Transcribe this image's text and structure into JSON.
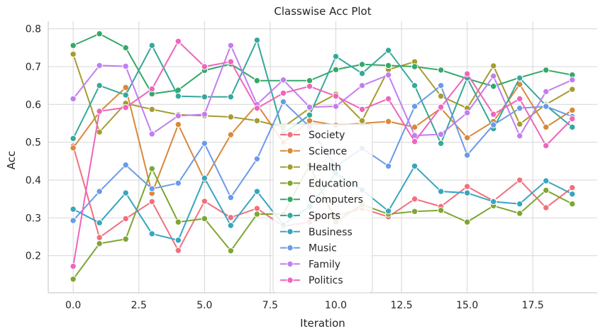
{
  "chart_data": {
    "type": "line",
    "title": "Classwise Acc Plot",
    "xlabel": "Iteration",
    "ylabel": "Acc",
    "xlim": [
      -0.95,
      19.95
    ],
    "ylim": [
      0.102,
      0.82
    ],
    "xticks": [
      0.0,
      2.5,
      5.0,
      7.5,
      10.0,
      12.5,
      15.0,
      17.5
    ],
    "xtick_labels": [
      "0.0",
      "2.5",
      "5.0",
      "7.5",
      "10.0",
      "12.5",
      "15.0",
      "17.5"
    ],
    "yticks": [
      0.2,
      0.3,
      0.4,
      0.5,
      0.6,
      0.7,
      0.8
    ],
    "ytick_labels": [
      "0.2",
      "0.3",
      "0.4",
      "0.5",
      "0.6",
      "0.7",
      "0.8"
    ],
    "grid": true,
    "legend_position": "lower-center",
    "x": [
      0,
      1,
      2,
      3,
      4,
      5,
      6,
      7,
      8,
      9,
      10,
      11,
      12,
      13,
      14,
      15,
      16,
      17,
      18,
      19
    ],
    "series": [
      {
        "name": "Society",
        "color": "#f0707e",
        "values": [
          0.49,
          0.248,
          0.298,
          0.343,
          0.214,
          0.344,
          0.301,
          0.325,
          0.278,
          0.289,
          0.305,
          0.325,
          0.303,
          0.35,
          0.33,
          0.383,
          0.345,
          0.4,
          0.327,
          0.38
        ]
      },
      {
        "name": "Science",
        "color": "#d9883a",
        "values": [
          0.485,
          0.58,
          0.645,
          0.365,
          0.547,
          0.4,
          0.52,
          0.6,
          0.5,
          0.557,
          0.545,
          0.55,
          0.555,
          0.54,
          0.59,
          0.512,
          0.555,
          0.653,
          0.54,
          0.585
        ]
      },
      {
        "name": "Health",
        "color": "#a69c30",
        "values": [
          0.733,
          0.527,
          0.603,
          0.587,
          0.573,
          0.57,
          0.567,
          0.557,
          0.54,
          0.59,
          0.627,
          0.557,
          0.692,
          0.713,
          0.622,
          0.59,
          0.702,
          0.548,
          0.6,
          0.64
        ]
      },
      {
        "name": "Education",
        "color": "#7da632",
        "values": [
          0.138,
          0.232,
          0.244,
          0.43,
          0.289,
          0.298,
          0.213,
          0.31,
          0.31,
          0.44,
          0.29,
          0.335,
          0.31,
          0.317,
          0.32,
          0.289,
          0.332,
          0.312,
          0.373,
          0.337
        ]
      },
      {
        "name": "Computers",
        "color": "#34a867",
        "values": [
          0.756,
          0.787,
          0.75,
          0.628,
          0.638,
          0.69,
          0.707,
          0.663,
          0.663,
          0.663,
          0.692,
          0.706,
          0.703,
          0.7,
          0.691,
          0.668,
          0.648,
          0.671,
          0.691,
          0.678
        ]
      },
      {
        "name": "Sports",
        "color": "#36a89b",
        "values": [
          0.51,
          0.65,
          0.625,
          0.756,
          0.622,
          0.62,
          0.62,
          0.77,
          0.523,
          0.572,
          0.727,
          0.682,
          0.743,
          0.65,
          0.497,
          0.67,
          0.536,
          0.67,
          0.597,
          0.54
        ]
      },
      {
        "name": "Business",
        "color": "#38a5bf",
        "values": [
          0.323,
          0.287,
          0.366,
          0.258,
          0.241,
          0.405,
          0.28,
          0.37,
          0.282,
          0.33,
          0.418,
          0.374,
          0.318,
          0.437,
          0.37,
          0.366,
          0.343,
          0.337,
          0.398,
          0.363
        ]
      },
      {
        "name": "Music",
        "color": "#6a9be8",
        "values": [
          0.293,
          0.37,
          0.44,
          0.377,
          0.392,
          0.497,
          0.354,
          0.456,
          0.607,
          0.541,
          0.436,
          0.484,
          0.437,
          0.595,
          0.65,
          0.466,
          0.546,
          0.59,
          0.595,
          0.568
        ]
      },
      {
        "name": "Family",
        "color": "#c27ef0",
        "values": [
          0.615,
          0.703,
          0.701,
          0.522,
          0.57,
          0.574,
          0.756,
          0.6,
          0.665,
          0.593,
          0.595,
          0.65,
          0.678,
          0.518,
          0.521,
          0.578,
          0.675,
          0.517,
          0.634,
          0.665
        ]
      },
      {
        "name": "Politics",
        "color": "#ee65bd",
        "values": [
          0.172,
          0.582,
          0.592,
          0.641,
          0.767,
          0.7,
          0.713,
          0.59,
          0.63,
          0.648,
          0.622,
          0.587,
          0.615,
          0.502,
          0.593,
          0.681,
          0.574,
          0.615,
          0.491,
          0.562
        ]
      }
    ]
  }
}
